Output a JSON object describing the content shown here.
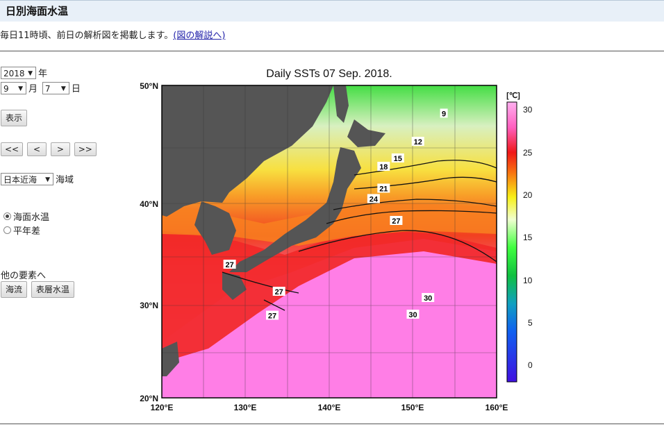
{
  "page": {
    "title": "日別海面水温"
  },
  "intro": {
    "text": "毎日11時頃、前日の解析図を掲載します。",
    "link": "(図の解説へ)"
  },
  "controls": {
    "year": "2018",
    "year_unit": "年",
    "month": "9",
    "month_unit": "月",
    "day": "7",
    "day_unit": "日",
    "show_button": "表示",
    "nav": {
      "first": "<<",
      "prev": "<",
      "next": ">",
      "last": ">>"
    },
    "region": "日本近海",
    "region_unit": "海域",
    "radio_sst": "海面水温",
    "radio_anomaly": "平年差",
    "other_label": "他の要素へ",
    "btn_current": "海流",
    "btn_layer": "表層水温",
    "selected_element": "海面水温"
  },
  "colors": {
    "land": "#555555",
    "pink": "#ff7ee6",
    "red": "#f22020"
  },
  "chart_data": {
    "type": "heatmap",
    "title": "Daily SSTs 07 Sep. 2018.",
    "x_ticks": [
      "120°E",
      "130°E",
      "140°E",
      "150°E",
      "160°E"
    ],
    "y_ticks": [
      "50°N",
      "40°N",
      "30°N",
      "20°N"
    ],
    "xlim": [
      120,
      160
    ],
    "ylim": [
      20,
      50
    ],
    "colorbar": {
      "unit": "[℃]",
      "ticks": [
        "30",
        "25",
        "20",
        "15",
        "10",
        "5",
        "0"
      ],
      "range": [
        -2,
        32
      ]
    },
    "contour_labels": [
      {
        "text": "9",
        "lon": 153.7,
        "lat": 47.3
      },
      {
        "text": "12",
        "lon": 150.6,
        "lat": 44.6
      },
      {
        "text": "15",
        "lon": 148.2,
        "lat": 43.0
      },
      {
        "text": "18",
        "lon": 146.5,
        "lat": 42.2
      },
      {
        "text": "21",
        "lon": 146.5,
        "lat": 40.1
      },
      {
        "text": "24",
        "lon": 145.3,
        "lat": 39.1
      },
      {
        "text": "27",
        "lon": 148.0,
        "lat": 37.0
      },
      {
        "text": "27",
        "lon": 128.1,
        "lat": 32.8
      },
      {
        "text": "27",
        "lon": 134.0,
        "lat": 30.2
      },
      {
        "text": "30",
        "lon": 151.8,
        "lat": 29.6
      },
      {
        "text": "30",
        "lon": 150.0,
        "lat": 28.0
      },
      {
        "text": "27",
        "lon": 133.2,
        "lat": 27.9
      }
    ]
  }
}
